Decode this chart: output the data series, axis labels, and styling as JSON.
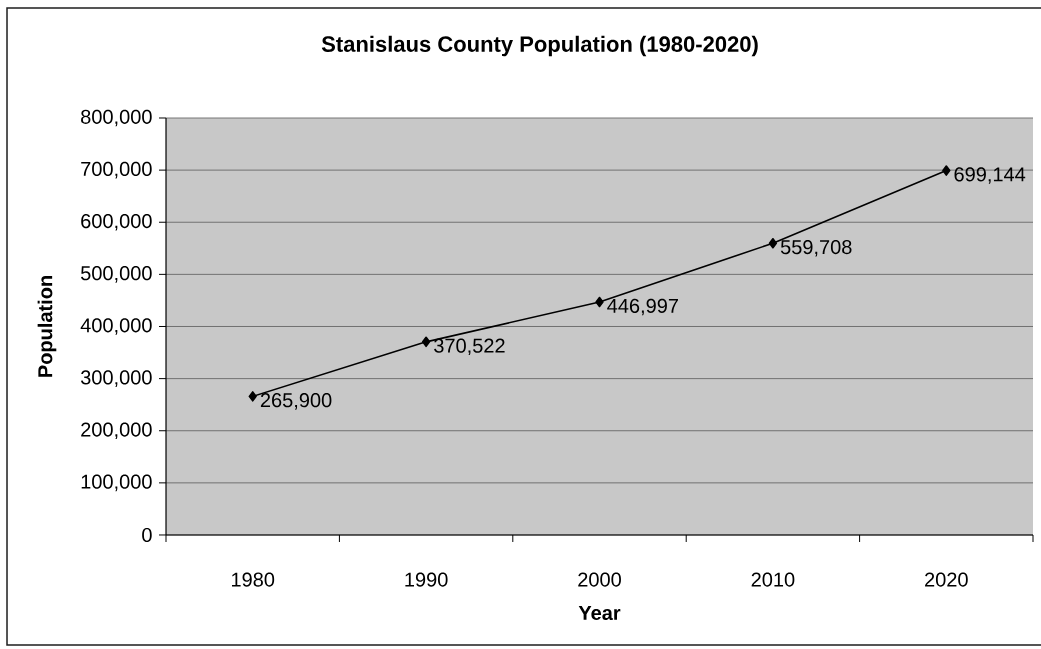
{
  "chart_data": {
    "type": "line",
    "title": "Stanislaus County Population (1980-2020)",
    "xlabel": "Year",
    "ylabel": "Population",
    "categories": [
      "1980",
      "1990",
      "2000",
      "2010",
      "2020"
    ],
    "series": [
      {
        "color": "#000000",
        "values": [
          265900,
          370522,
          446997,
          559708,
          699144
        ],
        "value_labels": [
          "265,900",
          "370,522",
          "446,997",
          "559,708",
          "699,144"
        ]
      }
    ],
    "ylim": [
      0,
      800000
    ],
    "yticks": [
      0,
      {
        "value": 100000,
        "label": "100,000"
      },
      {
        "value": 200000,
        "label": "200,000"
      },
      {
        "value": 300000,
        "label": "300,000"
      },
      {
        "value": 400000,
        "label": "400,000"
      },
      {
        "value": 500000,
        "label": "500,000"
      },
      {
        "value": 600000,
        "label": "600,000"
      },
      {
        "value": 700000,
        "label": "700,000"
      },
      {
        "value": 800000,
        "label": "800,000"
      }
    ],
    "grid": "y",
    "legend": false,
    "marker": "diamond",
    "line_style": "solid"
  }
}
